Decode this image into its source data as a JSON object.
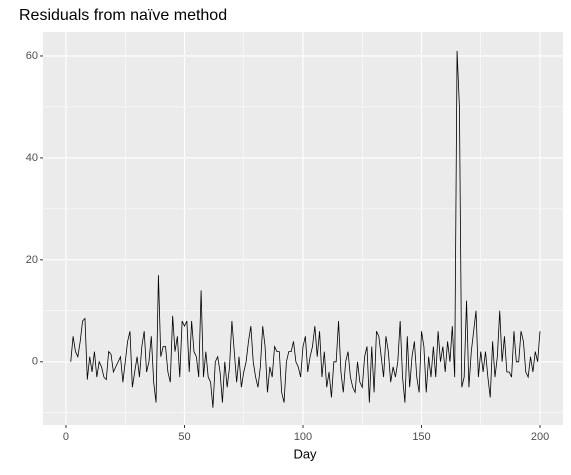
{
  "chart_data": {
    "type": "line",
    "title": "Residuals from naïve method",
    "xlabel": "Day",
    "x": [
      2,
      3,
      4,
      5,
      6,
      7,
      8,
      9,
      10,
      11,
      12,
      13,
      14,
      15,
      16,
      17,
      18,
      19,
      20,
      21,
      22,
      23,
      24,
      25,
      26,
      27,
      28,
      29,
      30,
      31,
      32,
      33,
      34,
      35,
      36,
      37,
      38,
      39,
      40,
      41,
      42,
      43,
      44,
      45,
      46,
      47,
      48,
      49,
      50,
      51,
      52,
      53,
      54,
      55,
      56,
      57,
      58,
      59,
      60,
      61,
      62,
      63,
      64,
      65,
      66,
      67,
      68,
      69,
      70,
      71,
      72,
      73,
      74,
      75,
      76,
      77,
      78,
      79,
      80,
      81,
      82,
      83,
      84,
      85,
      86,
      87,
      88,
      89,
      90,
      91,
      92,
      93,
      94,
      95,
      96,
      97,
      98,
      99,
      100,
      101,
      102,
      103,
      104,
      105,
      106,
      107,
      108,
      109,
      110,
      111,
      112,
      113,
      114,
      115,
      116,
      117,
      118,
      119,
      120,
      121,
      122,
      123,
      124,
      125,
      126,
      127,
      128,
      129,
      130,
      131,
      132,
      133,
      134,
      135,
      136,
      137,
      138,
      139,
      140,
      141,
      142,
      143,
      144,
      145,
      146,
      147,
      148,
      149,
      150,
      151,
      152,
      153,
      154,
      155,
      156,
      157,
      158,
      159,
      160,
      161,
      162,
      163,
      164,
      165,
      166,
      167,
      168,
      169,
      170,
      171,
      172,
      173,
      174,
      175,
      176,
      177,
      178,
      179,
      180,
      181,
      182,
      183,
      184,
      185,
      186,
      187,
      188,
      189,
      190,
      191,
      192,
      193,
      194,
      195,
      196,
      197,
      198,
      199,
      200
    ],
    "values": [
      0,
      5,
      2,
      1,
      4,
      8,
      8.5,
      -3.5,
      1,
      -2,
      2,
      -3,
      0,
      -1,
      -3,
      -3.5,
      2,
      1.5,
      -2,
      -1,
      0,
      1,
      -4,
      0,
      4,
      6,
      -5,
      -2,
      1,
      -3,
      3,
      6,
      -2,
      0,
      5,
      -4,
      -8,
      17,
      1,
      3,
      3,
      -2,
      -4,
      9,
      2,
      5,
      -3,
      8,
      7,
      8,
      -2,
      8,
      2,
      1,
      -3,
      14,
      -3,
      2,
      -3,
      -4,
      -9,
      0,
      1,
      -2,
      -8,
      0,
      -5,
      -1,
      8,
      2,
      -4,
      1,
      -5,
      -2,
      0,
      4,
      7,
      0,
      -3,
      -5,
      -1,
      7,
      3,
      -6,
      -1,
      -3,
      3,
      2,
      2,
      -6,
      -8,
      0,
      2,
      2,
      4,
      0,
      -1,
      -3,
      3,
      5,
      -2,
      1,
      3,
      7,
      1,
      6,
      -3,
      2,
      -5,
      -2,
      -7,
      0,
      0,
      8,
      -2,
      -6,
      0,
      2,
      -3,
      -5,
      -6,
      0,
      -4,
      -5,
      1,
      3,
      -8,
      3,
      -6,
      6,
      5,
      1,
      -3,
      5,
      2,
      -4,
      -1,
      -3,
      0,
      8,
      -3,
      -8,
      5,
      -5,
      1,
      4,
      -3,
      -6,
      6,
      3,
      -6,
      1,
      -3,
      3,
      -3,
      6,
      0,
      3,
      -2,
      4,
      0,
      7,
      -3,
      61,
      50,
      -5,
      -3,
      12,
      -5,
      2,
      6,
      10,
      -3,
      2,
      -2,
      2,
      -3,
      -7,
      4,
      -3,
      1,
      10,
      0,
      5,
      -2,
      -2,
      -3,
      6,
      0,
      0,
      6,
      4,
      -2,
      -3,
      1,
      -2,
      2,
      0,
      6
    ],
    "color": "#000000",
    "xlim": [
      -9.7,
      209.7
    ],
    "xticks": [
      0,
      50,
      100,
      150,
      200
    ],
    "xminorticks": [
      25,
      75,
      125,
      175
    ],
    "ylim": [
      -12.4,
      64.7
    ],
    "yticks": [
      0,
      20,
      40,
      60
    ],
    "yminorticks": [
      -10,
      10,
      30,
      50
    ],
    "grid": true
  }
}
